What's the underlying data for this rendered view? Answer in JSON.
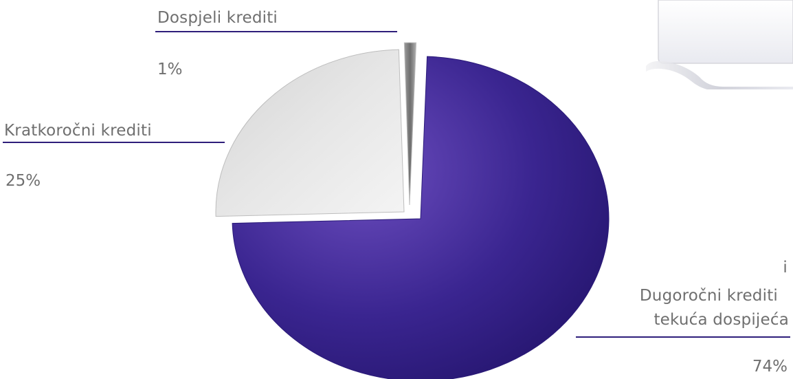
{
  "chart_data": {
    "type": "pie",
    "categories": [
      "Dugoročni krediti i tekuća dospijeća",
      "Kratkoročni krediti",
      "Dospjeli krediti"
    ],
    "values": [
      74,
      25,
      1
    ],
    "value_labels": [
      "74%",
      "25%",
      "1%"
    ],
    "title": "",
    "legend": "none",
    "colors": [
      "#3a2a8c",
      "#d8d8d8",
      "#8c8c8c"
    ]
  },
  "labels": {
    "dospjeli": {
      "name": "Dospjeli krediti",
      "pct": "1%"
    },
    "kratkorocni": {
      "name": "Kratkoročni krediti",
      "pct": "25%"
    },
    "dugorocni": {
      "line1": "i",
      "line2": "Dugoročni krediti",
      "line3": "tekuća dospijeća",
      "pct": "74%"
    }
  }
}
